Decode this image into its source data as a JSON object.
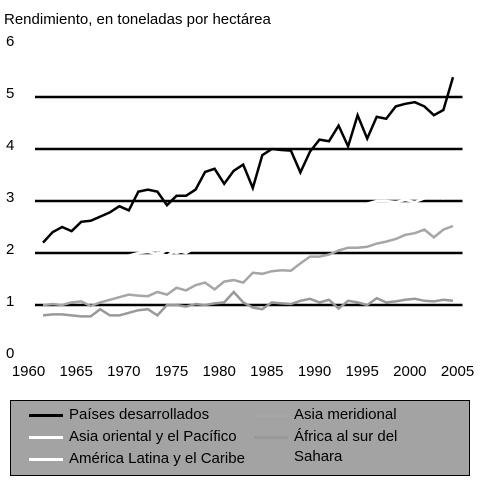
{
  "chart_data": {
    "type": "line",
    "title": "Rendimiento, en toneladas por hectárea",
    "x": [
      1961,
      1962,
      1963,
      1964,
      1965,
      1966,
      1967,
      1968,
      1969,
      1970,
      1971,
      1972,
      1973,
      1974,
      1975,
      1976,
      1977,
      1978,
      1979,
      1980,
      1981,
      1982,
      1983,
      1984,
      1985,
      1986,
      1987,
      1988,
      1989,
      1990,
      1991,
      1992,
      1993,
      1994,
      1995,
      1996,
      1997,
      1998,
      1999,
      2000,
      2001,
      2002,
      2003,
      2004
    ],
    "xlim": [
      1960,
      2005
    ],
    "xticks": [
      1960,
      1965,
      1970,
      1975,
      1980,
      1985,
      1990,
      1995,
      2000,
      2005
    ],
    "ylim": [
      0,
      6
    ],
    "yticks": [
      0,
      1,
      2,
      3,
      4,
      5,
      6
    ],
    "grid": true,
    "series": [
      {
        "name": "Países desarrollados",
        "color": "#000000",
        "values": [
          2.2,
          2.4,
          2.5,
          2.42,
          2.6,
          2.62,
          2.7,
          2.78,
          2.9,
          2.82,
          3.18,
          3.22,
          3.18,
          2.92,
          3.1,
          3.1,
          3.22,
          3.56,
          3.62,
          3.33,
          3.58,
          3.7,
          3.25,
          3.88,
          4.0,
          3.98,
          3.97,
          3.55,
          3.95,
          4.18,
          4.15,
          4.45,
          4.05,
          4.65,
          4.2,
          4.62,
          4.58,
          4.82,
          4.87,
          4.9,
          4.82,
          4.65,
          4.75,
          5.38
        ]
      },
      {
        "name": "Asia oriental y el Pacífico",
        "color": "#ffffff",
        "values": [
          1.45,
          1.4,
          1.5,
          1.55,
          1.6,
          1.65,
          1.7,
          1.65,
          1.75,
          1.85,
          1.9,
          1.88,
          2.0,
          1.95,
          2.05,
          2.0,
          2.1,
          2.2,
          2.3,
          2.3,
          2.35,
          2.45,
          2.55,
          2.6,
          2.6,
          2.62,
          2.65,
          2.65,
          2.7,
          2.75,
          2.8,
          2.85,
          2.9,
          2.9,
          2.95,
          3.0,
          3.0,
          2.98,
          3.02,
          2.98,
          3.05,
          3.08,
          3.05,
          3.12
        ]
      },
      {
        "name": "América Latina y el Caribe",
        "color": "#ffffff",
        "values": [
          1.25,
          1.3,
          1.35,
          1.4,
          1.45,
          1.5,
          1.6,
          1.7,
          1.85,
          1.95,
          2.0,
          2.02,
          1.98,
          2.05,
          2.0,
          2.05,
          2.1,
          2.1,
          2.15,
          2.2,
          2.25,
          2.25,
          2.2,
          2.3,
          2.35,
          2.3,
          2.3,
          2.35,
          2.3,
          2.4,
          2.45,
          2.45,
          2.5,
          2.6,
          2.6,
          2.65,
          2.7,
          2.75,
          2.7,
          2.8,
          2.85,
          2.85,
          2.8,
          2.9
        ]
      },
      {
        "name": "Asia meridional",
        "color": "#a6a6a6",
        "values": [
          1.0,
          1.02,
          1.0,
          1.05,
          1.07,
          0.98,
          1.05,
          1.1,
          1.15,
          1.2,
          1.18,
          1.17,
          1.25,
          1.2,
          1.33,
          1.28,
          1.38,
          1.43,
          1.3,
          1.45,
          1.48,
          1.43,
          1.62,
          1.6,
          1.65,
          1.67,
          1.66,
          1.8,
          1.93,
          1.93,
          1.97,
          2.05,
          2.1,
          2.1,
          2.12,
          2.18,
          2.22,
          2.27,
          2.35,
          2.38,
          2.45,
          2.3,
          2.45,
          2.52
        ]
      },
      {
        "name": "África al sur del Sahara",
        "color": "#999999",
        "values": [
          0.8,
          0.82,
          0.82,
          0.8,
          0.78,
          0.78,
          0.92,
          0.8,
          0.8,
          0.85,
          0.9,
          0.92,
          0.8,
          1.0,
          1.0,
          0.97,
          1.02,
          1.0,
          1.03,
          1.05,
          1.25,
          1.05,
          0.95,
          0.92,
          1.05,
          1.03,
          1.02,
          1.08,
          1.12,
          1.05,
          1.1,
          0.93,
          1.08,
          1.05,
          1.0,
          1.13,
          1.05,
          1.07,
          1.1,
          1.12,
          1.08,
          1.07,
          1.1,
          1.08
        ]
      }
    ]
  }
}
